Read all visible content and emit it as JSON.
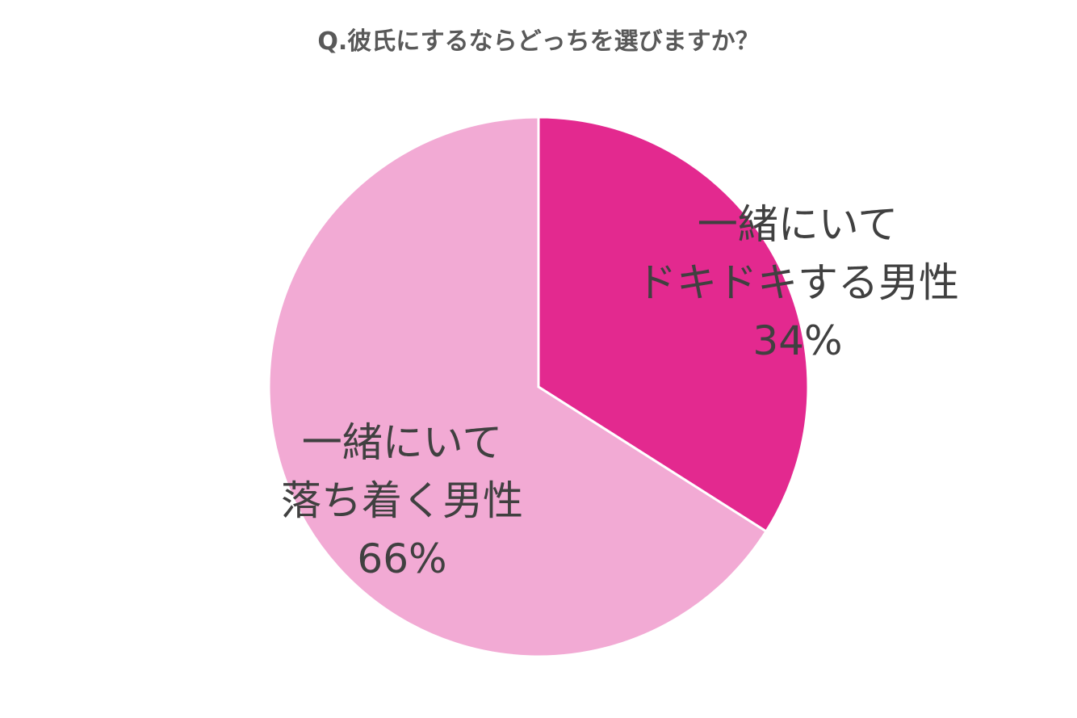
{
  "chart_data": {
    "type": "pie",
    "title": "Q.彼氏にするならどっちを選びますか？",
    "start_angle": "12 o'clock, clockwise",
    "legend": "none",
    "slices": [
      {
        "label_line1": "一緒にいて",
        "label_line2": "ドキドキする男性",
        "value": 34,
        "value_label": "34%",
        "color": "#E3298F"
      },
      {
        "label_line1": "一緒にいて",
        "label_line2": "落ち着く男性",
        "value": 66,
        "value_label": "66%",
        "color": "#F2AAD4"
      }
    ]
  }
}
